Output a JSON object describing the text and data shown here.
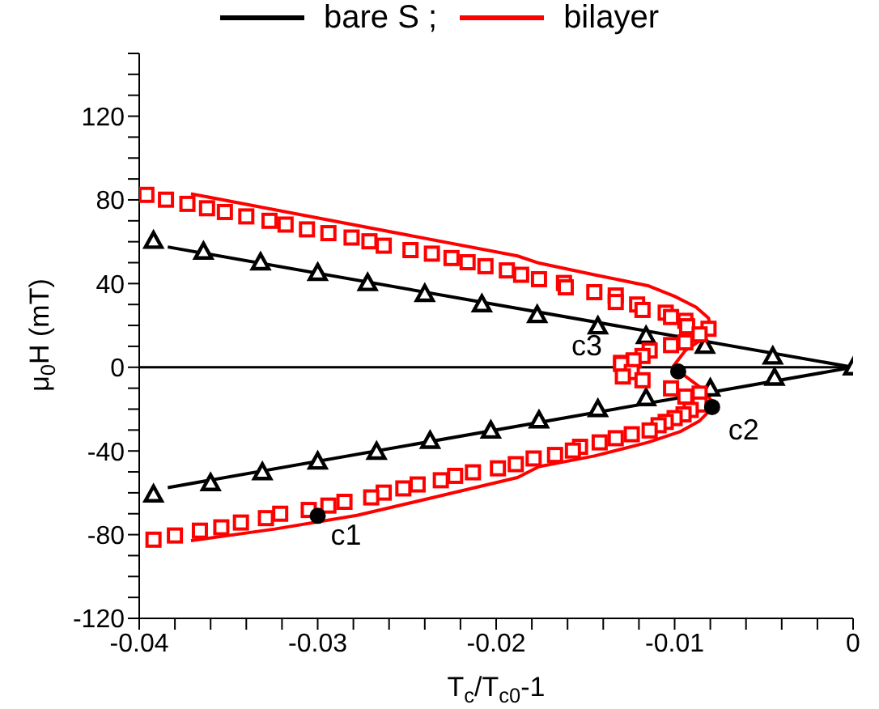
{
  "chart_data": {
    "type": "line",
    "xlabel": "T$_{c}$/T$_{c0}$-1",
    "ylabel": "μ$_{0}$H (mT)",
    "xlim": [
      -0.04,
      0
    ],
    "ylim": [
      -120,
      150
    ],
    "xticks": [
      -0.04,
      {
        "value": -0.038,
        "label": null
      },
      {
        "value": -0.036,
        "label": null
      },
      {
        "value": -0.034,
        "label": null
      },
      {
        "value": -0.032,
        "label": null
      },
      -0.03,
      {
        "value": -0.028,
        "label": null
      },
      {
        "value": -0.026,
        "label": null
      },
      {
        "value": -0.024,
        "label": null
      },
      {
        "value": -0.022,
        "label": null
      },
      -0.02,
      {
        "value": -0.018,
        "label": null
      },
      {
        "value": -0.016,
        "label": null
      },
      {
        "value": -0.014,
        "label": null
      },
      {
        "value": -0.012,
        "label": null
      },
      -0.01,
      {
        "value": -0.008,
        "label": null
      },
      {
        "value": -0.006,
        "label": null
      },
      {
        "value": -0.004,
        "label": null
      },
      {
        "value": -0.002,
        "label": null
      },
      0
    ],
    "yticks": [
      -120,
      {
        "value": -110,
        "label": null
      },
      {
        "value": -100,
        "label": null
      },
      {
        "value": -90,
        "label": null
      },
      -80,
      {
        "value": -70,
        "label": null
      },
      {
        "value": -60,
        "label": null
      },
      {
        "value": -50,
        "label": null
      },
      -40,
      {
        "value": -30,
        "label": null
      },
      {
        "value": -20,
        "label": null
      },
      {
        "value": -10,
        "label": null
      },
      0,
      {
        "value": 10,
        "label": null
      },
      {
        "value": 20,
        "label": null
      },
      {
        "value": 30,
        "label": null
      },
      40,
      {
        "value": 50,
        "label": null
      },
      {
        "value": 60,
        "label": null
      },
      {
        "value": 70,
        "label": null
      },
      80,
      {
        "value": 90,
        "label": null
      },
      {
        "value": 100,
        "label": null
      },
      {
        "value": 110,
        "label": null
      },
      120,
      {
        "value": 130,
        "label": null
      },
      {
        "value": 140,
        "label": null
      },
      {
        "value": 150,
        "label": null
      }
    ],
    "legend": "top",
    "ref_lines": [
      {
        "axis": "y",
        "value": 0,
        "color": "#000000"
      }
    ],
    "annotations": [
      {
        "text": "c1",
        "x": -0.03,
        "y": -71
      },
      {
        "text": "c2",
        "x": -0.0079,
        "y": -19
      },
      {
        "text": "c3",
        "x": -0.0098,
        "y": -2
      }
    ],
    "series": [
      {
        "name": "bare S ;",
        "color": "#000000",
        "marker": "none",
        "x": [
          -0.0384,
          0,
          -0.0384
        ],
        "values": [
          57.5,
          0,
          -57.5
        ]
      },
      {
        "type": "scatter",
        "color": "#000000",
        "marker": "triangle",
        "x": [
          -0.0392,
          -0.0364,
          -0.0332,
          -0.03,
          -0.0272,
          -0.024,
          -0.0208,
          -0.0177,
          -0.0143,
          -0.0116,
          -0.0083,
          -0.0045,
          0,
          -0.0392,
          -0.036,
          -0.0331,
          -0.03,
          -0.0267,
          -0.0237,
          -0.0203,
          -0.0176,
          -0.0143,
          -0.0116,
          -0.008,
          -0.0044
        ],
        "values": [
          60.5,
          55.3,
          50.2,
          45.2,
          40.3,
          35.1,
          30.2,
          25,
          19.6,
          15,
          10.3,
          5.2,
          0,
          -60.7,
          -55.3,
          -50.1,
          -45,
          -40.3,
          -35.1,
          -30.2,
          -25.3,
          -19.9,
          -14.7,
          -10.1,
          -4.9
        ]
      },
      {
        "name": "bilayer",
        "color": "#ff0000",
        "marker": "none",
        "x": [
          -0.0371,
          -0.0188,
          -0.0176,
          -0.0145,
          -0.0115,
          -0.01,
          -0.0088,
          -0.0081,
          -0.008,
          -0.0085,
          -0.0094,
          -0.0101,
          -0.0085,
          -0.008,
          -0.008,
          -0.0086,
          -0.0097,
          -0.0115,
          -0.0145,
          -0.0176,
          -0.0188,
          -0.0233,
          -0.0278,
          -0.0324,
          -0.0371
        ],
        "values": [
          82.9,
          53.2,
          49.8,
          44.2,
          39,
          33.9,
          28.7,
          23.5,
          18.4,
          13.2,
          8,
          0.2,
          -10,
          -15.2,
          -20.4,
          -25.6,
          -30.8,
          -35.9,
          -42.4,
          -47.5,
          -52.7,
          -61.8,
          -70.8,
          -77.3,
          -82.9
        ]
      },
      {
        "type": "scatter",
        "color": "#ff0000",
        "marker": "square",
        "x": [
          -0.0396,
          -0.0385,
          -0.0373,
          -0.0362,
          -0.0352,
          -0.034,
          -0.0327,
          -0.0318,
          -0.0306,
          -0.0294,
          -0.0281,
          -0.0271,
          -0.0263,
          -0.0248,
          -0.0236,
          -0.0225,
          -0.0216,
          -0.0206,
          -0.0194,
          -0.0186,
          -0.0176,
          -0.0162,
          -0.0161,
          -0.0145,
          -0.0133,
          -0.0133,
          -0.0121,
          -0.0118,
          -0.0105,
          -0.0102,
          -0.0094,
          -0.0093,
          -0.0081,
          -0.0086,
          -0.0094,
          -0.0102,
          -0.0114,
          -0.0118,
          -0.0123,
          -0.013,
          -0.013,
          -0.0124,
          -0.0129,
          -0.0118,
          -0.0102,
          -0.0086,
          -0.0094,
          -0.0086,
          -0.0091,
          -0.0095,
          -0.01,
          -0.0105,
          -0.0109,
          -0.0114,
          -0.0124,
          -0.0133,
          -0.0142,
          -0.0153,
          -0.0157,
          -0.0167,
          -0.0179,
          -0.0189,
          -0.0199,
          -0.0213,
          -0.0223,
          -0.0231,
          -0.0244,
          -0.0252,
          -0.0263,
          -0.027,
          -0.0285,
          -0.0294,
          -0.0305,
          -0.0321,
          -0.0329,
          -0.0343,
          -0.0354,
          -0.0366,
          -0.038,
          -0.0392
        ],
        "values": [
          82.4,
          80.1,
          78.1,
          76,
          74.2,
          72.1,
          70,
          68.2,
          65.9,
          64.1,
          62,
          60.2,
          58.1,
          56,
          54.3,
          52.2,
          50.2,
          48.3,
          46.3,
          44.2,
          42.1,
          40.3,
          38.2,
          35.9,
          34.3,
          31.2,
          30,
          27.4,
          26.1,
          24,
          22.2,
          19.6,
          18.4,
          15.7,
          11.9,
          10.6,
          8,
          5.4,
          3.3,
          2.1,
          1.6,
          -2.3,
          -4.4,
          -6.2,
          -10.1,
          -12.6,
          -14,
          -17.8,
          -20.4,
          -22.5,
          -24.3,
          -26.1,
          -27.7,
          -30.2,
          -32,
          -33.9,
          -35.9,
          -38,
          -39.8,
          -41.9,
          -43.6,
          -46.3,
          -48.3,
          -50.2,
          -51.9,
          -54,
          -56,
          -57.9,
          -59.9,
          -62.2,
          -64.3,
          -66.1,
          -68.2,
          -70,
          -72.1,
          -74.2,
          -76.5,
          -78.1,
          -80.4,
          -82.4
        ]
      },
      {
        "type": "scatter",
        "color": "#000000",
        "marker": "circle",
        "x": [
          -0.03,
          -0.0079,
          -0.0098
        ],
        "values": [
          -71,
          -19,
          -2
        ]
      }
    ]
  }
}
